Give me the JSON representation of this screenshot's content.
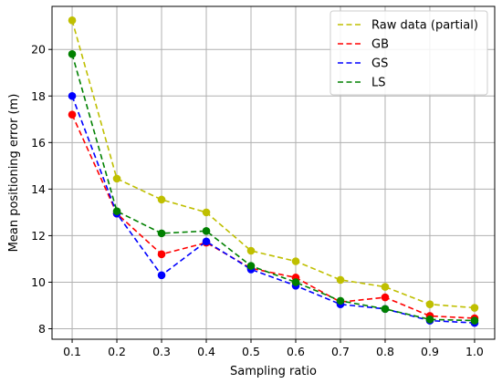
{
  "chart_data": {
    "type": "line",
    "title": "",
    "xlabel": "Sampling ratio",
    "ylabel": "Mean positioning error (m)",
    "x": [
      0.1,
      0.2,
      0.3,
      0.4,
      0.5,
      0.6,
      0.7,
      0.8,
      0.9,
      1.0
    ],
    "x_tick_labels": [
      "0.1",
      "0.2",
      "0.3",
      "0.4",
      "0.5",
      "0.6",
      "0.7",
      "0.8",
      "0.9",
      "1.0"
    ],
    "y_ticks": [
      8,
      10,
      12,
      14,
      16,
      18,
      20
    ],
    "y_tick_labels": [
      "8",
      "10",
      "12",
      "14",
      "16",
      "18",
      "20"
    ],
    "xlim": [
      0.055,
      1.045
    ],
    "ylim": [
      7.55,
      21.85
    ],
    "grid": true,
    "legend_position": "top-right",
    "series": [
      {
        "name": "Raw data (partial)",
        "color": "#bfbf00",
        "values": [
          21.25,
          14.45,
          13.55,
          13.0,
          11.35,
          10.9,
          10.1,
          9.8,
          9.05,
          8.9
        ]
      },
      {
        "name": "GB",
        "color": "#ff0000",
        "values": [
          17.2,
          12.95,
          11.2,
          11.7,
          10.6,
          10.2,
          9.15,
          9.35,
          8.55,
          8.45
        ]
      },
      {
        "name": "GS",
        "color": "#0000ff",
        "values": [
          18.0,
          12.95,
          10.3,
          11.75,
          10.55,
          9.85,
          9.05,
          8.85,
          8.35,
          8.25
        ]
      },
      {
        "name": "LS",
        "color": "#008000",
        "values": [
          19.8,
          13.05,
          12.1,
          12.2,
          10.7,
          10.0,
          9.2,
          8.85,
          8.4,
          8.35
        ]
      }
    ]
  }
}
